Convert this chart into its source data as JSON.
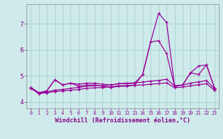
{
  "xlabel": "Windchill (Refroidissement éolien,°C)",
  "xlim": [
    -0.5,
    23.5
  ],
  "ylim": [
    3.75,
    7.75
  ],
  "xticks": [
    0,
    1,
    2,
    3,
    4,
    5,
    6,
    7,
    8,
    9,
    10,
    11,
    12,
    13,
    14,
    15,
    16,
    17,
    18,
    19,
    20,
    21,
    22,
    23
  ],
  "yticks": [
    4,
    5,
    6,
    7
  ],
  "background_color": "#ceeaea",
  "grid_color": "#a8cece",
  "line_color": "#990099",
  "lines": [
    [
      4.55,
      4.35,
      4.42,
      4.85,
      4.65,
      4.72,
      4.6,
      4.65,
      4.65,
      4.6,
      4.55,
      4.6,
      4.6,
      4.65,
      5.05,
      6.3,
      7.4,
      7.05,
      4.6,
      4.65,
      5.12,
      5.38,
      5.42,
      4.52
    ],
    [
      4.55,
      4.35,
      4.42,
      4.85,
      4.65,
      4.72,
      4.68,
      4.72,
      4.72,
      4.68,
      4.65,
      4.7,
      4.7,
      4.72,
      5.05,
      6.3,
      6.35,
      5.85,
      4.6,
      4.65,
      5.12,
      5.05,
      5.42,
      4.52
    ],
    [
      4.55,
      4.35,
      4.38,
      4.45,
      4.48,
      4.52,
      4.56,
      4.6,
      4.62,
      4.62,
      4.65,
      4.7,
      4.72,
      4.73,
      4.76,
      4.8,
      4.82,
      4.87,
      4.62,
      4.65,
      4.72,
      4.77,
      4.82,
      4.5
    ],
    [
      4.52,
      4.32,
      4.35,
      4.4,
      4.42,
      4.45,
      4.48,
      4.52,
      4.54,
      4.55,
      4.58,
      4.62,
      4.63,
      4.64,
      4.65,
      4.68,
      4.7,
      4.73,
      4.55,
      4.57,
      4.62,
      4.66,
      4.7,
      4.44
    ]
  ],
  "font_color": "#880088",
  "marker": "+",
  "markersize": 3.5,
  "linewidth": 0.9
}
